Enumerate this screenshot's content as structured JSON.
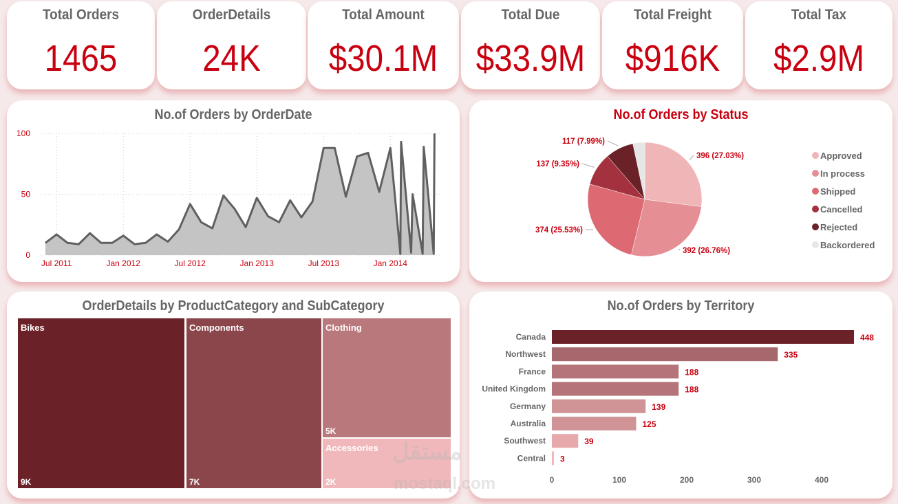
{
  "kpis": [
    {
      "label": "Total Orders",
      "value": "1465"
    },
    {
      "label": "OrderDetails",
      "value": "24K"
    },
    {
      "label": "Total Amount",
      "value": "$30.1M"
    },
    {
      "label": "Total Due",
      "value": "$33.9M"
    },
    {
      "label": "Total Freight",
      "value": "$916K"
    },
    {
      "label": "Total Tax",
      "value": "$2.9M"
    }
  ],
  "colors": {
    "accent": "#c8000f",
    "label": "#666666",
    "card": "#ffffff"
  },
  "watermark": {
    "arabic": "مستقل",
    "latin": "mostaql.com"
  },
  "chart_data": [
    {
      "type": "area",
      "title": "No.of Orders by OrderDate",
      "xlabel": "",
      "ylabel": "",
      "ylim": [
        0,
        100
      ],
      "yticks": [
        "0",
        "50",
        "100"
      ],
      "xticks": [
        {
          "label": "Jul 2011",
          "date": "2011-07"
        },
        {
          "label": "Jan 2012",
          "date": "2012-01"
        },
        {
          "label": "Jul 2012",
          "date": "2012-07"
        },
        {
          "label": "Jan 2013",
          "date": "2013-01"
        },
        {
          "label": "Jul 2013",
          "date": "2013-07"
        },
        {
          "label": "Jan 2014",
          "date": "2014-01"
        }
      ],
      "grid": true,
      "points": [
        [
          "2011-06",
          10
        ],
        [
          "2011-07",
          17
        ],
        [
          "2011-08",
          10
        ],
        [
          "2011-09",
          9
        ],
        [
          "2011-10",
          18
        ],
        [
          "2011-11",
          10
        ],
        [
          "2011-12",
          10
        ],
        [
          "2012-01",
          16
        ],
        [
          "2012-02",
          9
        ],
        [
          "2012-03",
          10
        ],
        [
          "2012-04",
          17
        ],
        [
          "2012-05",
          11
        ],
        [
          "2012-06",
          21
        ],
        [
          "2012-07",
          42
        ],
        [
          "2012-08",
          27
        ],
        [
          "2012-09",
          22
        ],
        [
          "2012-10",
          49
        ],
        [
          "2012-11",
          38
        ],
        [
          "2012-12",
          23
        ],
        [
          "2013-01",
          47
        ],
        [
          "2013-02",
          32
        ],
        [
          "2013-03",
          27
        ],
        [
          "2013-04",
          45
        ],
        [
          "2013-05",
          31
        ],
        [
          "2013-06",
          44
        ],
        [
          "2013-07",
          88
        ],
        [
          "2013-08",
          88
        ],
        [
          "2013-09",
          48
        ],
        [
          "2013-10",
          81
        ],
        [
          "2013-11",
          84
        ],
        [
          "2013-12",
          52
        ],
        [
          "2014-01",
          88
        ],
        [
          "2014-01-28",
          1
        ],
        [
          "2014-01-30",
          93
        ],
        [
          "2014-02-27",
          2
        ],
        [
          "2014-03-01",
          50
        ],
        [
          "2014-03-28",
          1
        ],
        [
          "2014-03-31",
          89
        ],
        [
          "2014-04-28",
          1
        ],
        [
          "2014-04-30",
          100
        ]
      ]
    },
    {
      "type": "pie",
      "title": "No.of Orders by Status",
      "legend": "right",
      "slices": [
        {
          "name": "Approved",
          "value": 396,
          "label": "396 (27.03%)",
          "color": "#efb5b7"
        },
        {
          "name": "In process",
          "value": 392,
          "label": "392 (26.76%)",
          "color": "#e58f95"
        },
        {
          "name": "Shipped",
          "value": 374,
          "label": "374 (25.53%)",
          "color": "#dd6a72"
        },
        {
          "name": "Cancelled",
          "value": 137,
          "label": "137 (9.35%)",
          "color": "#a3323e"
        },
        {
          "name": "Rejected",
          "value": 117,
          "label": "117 (7.99%)",
          "color": "#6b2128"
        },
        {
          "name": "Backordered",
          "value": 49,
          "label": "",
          "color": "#e6e6e6"
        }
      ]
    },
    {
      "type": "treemap",
      "title": "OrderDetails by ProductCategory and SubCategory",
      "items": [
        {
          "name": "Bikes",
          "label": "9K",
          "color": "#6b2128"
        },
        {
          "name": "Components",
          "label": "7K",
          "color": "#8b464c"
        },
        {
          "name": "Clothing",
          "label": "5K",
          "color": "#b9787c"
        },
        {
          "name": "Accessories",
          "label": "2K",
          "color": "#f0b8bb"
        }
      ]
    },
    {
      "type": "bar",
      "orientation": "horizontal",
      "title": "No.of Orders by Territory",
      "categories": [
        "Canada",
        "Northwest",
        "France",
        "United Kingdom",
        "Germany",
        "Australia",
        "Southwest",
        "Central"
      ],
      "values": [
        448,
        335,
        188,
        188,
        139,
        125,
        39,
        3
      ],
      "colors": [
        "#6b2128",
        "#a6686d",
        "#b5747a",
        "#b5747a",
        "#d09396",
        "#d09396",
        "#e8a9ac",
        "#f2b6b9"
      ],
      "xlim": [
        0,
        460
      ],
      "xticks": [
        "0",
        "100",
        "200",
        "300",
        "400"
      ]
    }
  ]
}
